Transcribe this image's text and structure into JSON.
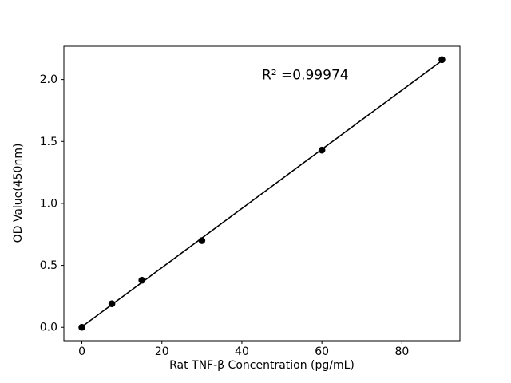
{
  "figure": {
    "background": "#ffffff"
  },
  "chart_data": {
    "type": "scatter",
    "title": "",
    "xlabel": "Rat TNF-β Concentration (pg/mL)",
    "ylabel": "OD Value(450nm)",
    "annotation": {
      "text": "R² =0.99974",
      "x": 45,
      "y": 2.0
    },
    "x": [
      0,
      7.5,
      15,
      30,
      60,
      90
    ],
    "y": [
      0.0,
      0.19,
      0.38,
      0.7,
      1.43,
      2.16
    ],
    "fit": "linear",
    "xlim": [
      -4.5,
      94.5
    ],
    "ylim": [
      -0.108,
      2.268
    ],
    "xticks": {
      "values": [
        0,
        20,
        40,
        60,
        80
      ],
      "labels": [
        "0",
        "20",
        "40",
        "60",
        "80"
      ]
    },
    "yticks": {
      "values": [
        0.0,
        0.5,
        1.0,
        1.5,
        2.0
      ],
      "labels": [
        "0.0",
        "0.5",
        "1.0",
        "1.5",
        "2.0"
      ]
    },
    "grid": false,
    "legend": "none",
    "marker_color": "#000000",
    "line_color": "#000000"
  }
}
